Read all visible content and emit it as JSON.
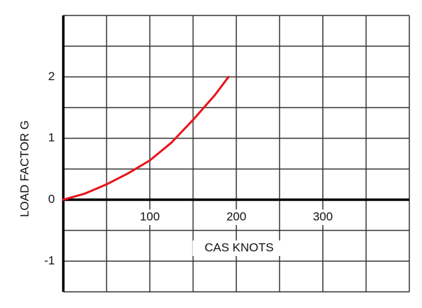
{
  "chart_data": {
    "type": "line",
    "x_label": "CAS KNOTS",
    "y_label": "LOAD FACTOR  G",
    "x": [
      0,
      25,
      50,
      75,
      100,
      125,
      150,
      175,
      191
    ],
    "series": [
      {
        "color": "#e8141b",
        "values": [
          0,
          0.1,
          0.25,
          0.43,
          0.64,
          0.93,
          1.3,
          1.7,
          2
        ]
      }
    ],
    "xlim": [
      0,
      400
    ],
    "ylim": [
      -1.5,
      3
    ],
    "xticks": [
      100,
      200,
      300
    ],
    "yticks": [
      -1,
      0,
      1,
      2
    ],
    "xgrid": [
      0,
      50,
      100,
      150,
      200,
      250,
      300,
      350,
      400
    ],
    "ygrid": [
      -1.5,
      -1,
      -0.5,
      0,
      0.5,
      1,
      1.5,
      2,
      2.5,
      3
    ]
  }
}
